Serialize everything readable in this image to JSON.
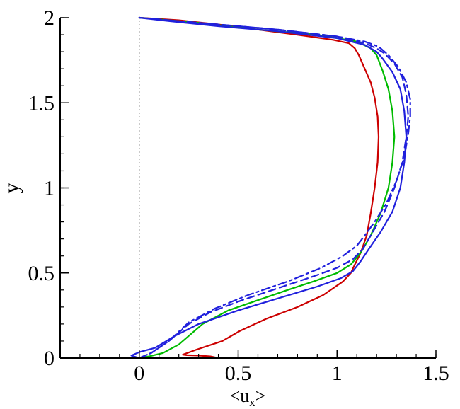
{
  "chart_data": {
    "type": "line",
    "xlabel": "<u",
    "xlabel_sub": "x",
    "xlabel_end": ">",
    "ylabel": "y",
    "xlim": [
      -0.4,
      1.5
    ],
    "ylim": [
      0,
      2
    ],
    "x_ticks": [
      0,
      0.5,
      1,
      1.5
    ],
    "x_tick_labels": [
      "0",
      "0.5",
      "1",
      "1.5"
    ],
    "y_ticks": [
      0,
      0.5,
      1,
      1.5,
      2
    ],
    "y_tick_labels": [
      "0",
      "0.5",
      "1",
      "1.5",
      "2"
    ],
    "x_minor_step": 0.1,
    "y_minor_step": 0.1,
    "grid": false,
    "reference_line": {
      "x": 0,
      "style": "dotted",
      "color": "#777777"
    },
    "series": [
      {
        "color": "#cc0000",
        "dash": "solid",
        "x": [
          0.4,
          0.36,
          0.3,
          0.24,
          0.22,
          0.29,
          0.42,
          0.51,
          0.64,
          0.8,
          0.93,
          1.03,
          1.07,
          1.09,
          1.12,
          1.15,
          1.17,
          1.19,
          1.205,
          1.21,
          1.205,
          1.19,
          1.17,
          1.14,
          1.11,
          1.09,
          1.06,
          0.98,
          0.8,
          0.6,
          0.4,
          0.2,
          0.0
        ],
        "y": [
          0.0,
          0.01,
          0.015,
          0.017,
          0.02,
          0.05,
          0.1,
          0.16,
          0.23,
          0.3,
          0.37,
          0.45,
          0.5,
          0.55,
          0.62,
          0.72,
          0.85,
          1.0,
          1.15,
          1.3,
          1.42,
          1.53,
          1.62,
          1.7,
          1.78,
          1.82,
          1.85,
          1.87,
          1.9,
          1.93,
          1.96,
          1.985,
          2.0
        ]
      },
      {
        "color": "#00bb00",
        "dash": "solid",
        "x": [
          0.0,
          0.05,
          0.12,
          0.2,
          0.26,
          0.32,
          0.45,
          0.6,
          0.75,
          0.88,
          1.0,
          1.07,
          1.12,
          1.17,
          1.22,
          1.26,
          1.28,
          1.29,
          1.28,
          1.26,
          1.23,
          1.2,
          1.17,
          1.1,
          0.9,
          0.6,
          0.3,
          0.0
        ],
        "y": [
          0.0,
          0.01,
          0.03,
          0.08,
          0.14,
          0.2,
          0.28,
          0.34,
          0.4,
          0.45,
          0.5,
          0.55,
          0.62,
          0.72,
          0.85,
          1.0,
          1.15,
          1.3,
          1.45,
          1.58,
          1.69,
          1.78,
          1.82,
          1.86,
          1.9,
          1.93,
          1.97,
          2.0
        ]
      },
      {
        "color": "#2020dd",
        "dash": "solid",
        "x": [
          0.0,
          -0.04,
          0.0,
          0.08,
          0.18,
          0.3,
          0.5,
          0.7,
          0.9,
          1.02,
          1.08,
          1.12,
          1.16,
          1.22,
          1.28,
          1.32,
          1.34,
          1.35,
          1.34,
          1.32,
          1.28,
          1.23,
          1.2,
          1.14,
          1.0,
          0.7,
          0.4,
          0.15,
          0.0
        ],
        "y": [
          0.0,
          0.015,
          0.035,
          0.06,
          0.13,
          0.2,
          0.28,
          0.35,
          0.42,
          0.47,
          0.51,
          0.57,
          0.64,
          0.74,
          0.86,
          1.0,
          1.15,
          1.3,
          1.45,
          1.58,
          1.68,
          1.76,
          1.8,
          1.84,
          1.88,
          1.92,
          1.95,
          1.98,
          2.0
        ]
      },
      {
        "color": "#2020dd",
        "dash": "dash",
        "x": [
          0.0,
          0.06,
          0.15,
          0.25,
          0.36,
          0.52,
          0.7,
          0.88,
          1.0,
          1.08,
          1.13,
          1.18,
          1.24,
          1.29,
          1.33,
          1.35,
          1.36,
          1.35,
          1.33,
          1.29,
          1.24,
          1.2,
          1.14,
          1.0,
          0.7,
          0.4,
          0.15,
          0.0
        ],
        "y": [
          0.0,
          0.03,
          0.1,
          0.2,
          0.27,
          0.34,
          0.41,
          0.48,
          0.53,
          0.58,
          0.64,
          0.74,
          0.86,
          1.0,
          1.15,
          1.3,
          1.42,
          1.55,
          1.65,
          1.73,
          1.79,
          1.82,
          1.85,
          1.89,
          1.93,
          1.96,
          1.985,
          2.0
        ]
      },
      {
        "color": "#2020dd",
        "dash": "dashdot",
        "x": [
          0.0,
          0.06,
          0.15,
          0.25,
          0.38,
          0.55,
          0.75,
          0.92,
          1.03,
          1.1,
          1.14,
          1.19,
          1.25,
          1.3,
          1.34,
          1.36,
          1.37,
          1.37,
          1.35,
          1.31,
          1.26,
          1.21,
          1.14,
          1.0,
          0.7,
          0.4,
          0.15,
          0.0
        ],
        "y": [
          0.0,
          0.03,
          0.1,
          0.21,
          0.29,
          0.37,
          0.45,
          0.53,
          0.6,
          0.66,
          0.72,
          0.8,
          0.91,
          1.04,
          1.18,
          1.32,
          1.42,
          1.52,
          1.62,
          1.71,
          1.78,
          1.83,
          1.86,
          1.89,
          1.93,
          1.96,
          1.985,
          2.0
        ]
      }
    ]
  }
}
